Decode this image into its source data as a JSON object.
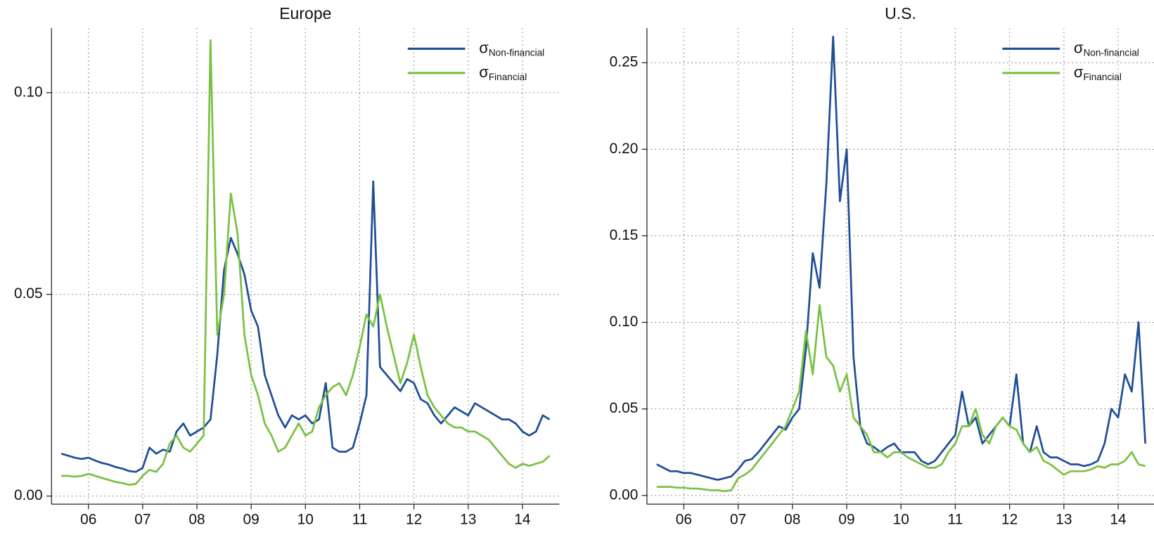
{
  "chart_data": [
    {
      "type": "line",
      "title": "Europe",
      "grid": true,
      "legend": "upper right",
      "xlim": [
        2005.32,
        2014.68
      ],
      "xticks": [
        {
          "value": 2006,
          "label": "06"
        },
        {
          "value": 2007,
          "label": "07"
        },
        {
          "value": 2008,
          "label": "08"
        },
        {
          "value": 2009,
          "label": "09"
        },
        {
          "value": 2010,
          "label": "10"
        },
        {
          "value": 2011,
          "label": "11"
        },
        {
          "value": 2012,
          "label": "12"
        },
        {
          "value": 2013,
          "label": "13"
        },
        {
          "value": 2014,
          "label": "14"
        }
      ],
      "ylim": [
        -0.002,
        0.116
      ],
      "yticks": [
        {
          "value": 0,
          "label": "0.00"
        },
        {
          "value": 0.05,
          "label": "0.05"
        },
        {
          "value": 0.1,
          "label": "0.10"
        }
      ],
      "x": [
        2005.5,
        2005.625,
        2005.75,
        2005.875,
        2006,
        2006.125,
        2006.25,
        2006.375,
        2006.5,
        2006.625,
        2006.75,
        2006.875,
        2007,
        2007.125,
        2007.25,
        2007.375,
        2007.5,
        2007.625,
        2007.75,
        2007.875,
        2008,
        2008.125,
        2008.25,
        2008.375,
        2008.5,
        2008.625,
        2008.75,
        2008.875,
        2009,
        2009.125,
        2009.25,
        2009.375,
        2009.5,
        2009.625,
        2009.75,
        2009.875,
        2010,
        2010.125,
        2010.25,
        2010.375,
        2010.5,
        2010.625,
        2010.75,
        2010.875,
        2011,
        2011.125,
        2011.25,
        2011.375,
        2011.5,
        2011.625,
        2011.75,
        2011.875,
        2012,
        2012.125,
        2012.25,
        2012.375,
        2012.5,
        2012.625,
        2012.75,
        2012.875,
        2013,
        2013.125,
        2013.25,
        2013.375,
        2013.5,
        2013.625,
        2013.75,
        2013.875,
        2014,
        2014.125,
        2014.25,
        2014.375,
        2014.5
      ],
      "series": [
        {
          "name": "σ",
          "subscript": "Non-financial",
          "color": "#1f4e96",
          "values": [
            0.0105,
            0.01,
            0.0095,
            0.0092,
            0.0095,
            0.0088,
            0.0082,
            0.0078,
            0.0072,
            0.0068,
            0.0062,
            0.006,
            0.007,
            0.012,
            0.0105,
            0.0115,
            0.011,
            0.016,
            0.018,
            0.015,
            0.016,
            0.017,
            0.019,
            0.035,
            0.056,
            0.064,
            0.06,
            0.055,
            0.046,
            0.042,
            0.03,
            0.025,
            0.02,
            0.017,
            0.02,
            0.019,
            0.02,
            0.018,
            0.019,
            0.028,
            0.012,
            0.011,
            0.011,
            0.012,
            0.018,
            0.025,
            0.078,
            0.032,
            0.03,
            0.028,
            0.026,
            0.029,
            0.028,
            0.024,
            0.023,
            0.02,
            0.018,
            0.02,
            0.022,
            0.021,
            0.02,
            0.023,
            0.022,
            0.021,
            0.02,
            0.019,
            0.019,
            0.018,
            0.016,
            0.015,
            0.016,
            0.02,
            0.019
          ]
        },
        {
          "name": "σ",
          "subscript": "Financial",
          "color": "#7ac143",
          "values": [
            0.005,
            0.005,
            0.0048,
            0.005,
            0.0055,
            0.005,
            0.0045,
            0.004,
            0.0035,
            0.0032,
            0.0028,
            0.003,
            0.005,
            0.0065,
            0.006,
            0.008,
            0.013,
            0.015,
            0.012,
            0.011,
            0.013,
            0.015,
            0.113,
            0.04,
            0.05,
            0.075,
            0.065,
            0.04,
            0.03,
            0.025,
            0.018,
            0.015,
            0.011,
            0.012,
            0.015,
            0.018,
            0.015,
            0.016,
            0.022,
            0.025,
            0.027,
            0.028,
            0.025,
            0.03,
            0.037,
            0.045,
            0.042,
            0.05,
            0.042,
            0.035,
            0.028,
            0.033,
            0.04,
            0.032,
            0.025,
            0.022,
            0.02,
            0.018,
            0.017,
            0.017,
            0.016,
            0.016,
            0.015,
            0.014,
            0.012,
            0.01,
            0.008,
            0.007,
            0.008,
            0.0075,
            0.008,
            0.0085,
            0.01
          ]
        }
      ]
    },
    {
      "type": "line",
      "title": "U.S.",
      "grid": true,
      "legend": "upper right",
      "xlim": [
        2005.32,
        2014.66
      ],
      "xticks": [
        {
          "value": 2006,
          "label": "06"
        },
        {
          "value": 2007,
          "label": "07"
        },
        {
          "value": 2008,
          "label": "08"
        },
        {
          "value": 2009,
          "label": "09"
        },
        {
          "value": 2010,
          "label": "10"
        },
        {
          "value": 2011,
          "label": "11"
        },
        {
          "value": 2012,
          "label": "12"
        },
        {
          "value": 2013,
          "label": "13"
        },
        {
          "value": 2014,
          "label": "14"
        }
      ],
      "ylim": [
        -0.005,
        0.27
      ],
      "yticks": [
        {
          "value": 0,
          "label": "0.00"
        },
        {
          "value": 0.05,
          "label": "0.05"
        },
        {
          "value": 0.1,
          "label": "0.10"
        },
        {
          "value": 0.15,
          "label": "0.15"
        },
        {
          "value": 0.2,
          "label": "0.20"
        },
        {
          "value": 0.25,
          "label": "0.25"
        }
      ],
      "x": [
        2005.5,
        2005.625,
        2005.75,
        2005.875,
        2006,
        2006.125,
        2006.25,
        2006.375,
        2006.5,
        2006.625,
        2006.75,
        2006.875,
        2007,
        2007.125,
        2007.25,
        2007.375,
        2007.5,
        2007.625,
        2007.75,
        2007.875,
        2008,
        2008.125,
        2008.25,
        2008.375,
        2008.5,
        2008.625,
        2008.75,
        2008.875,
        2009,
        2009.125,
        2009.25,
        2009.375,
        2009.5,
        2009.625,
        2009.75,
        2009.875,
        2010,
        2010.125,
        2010.25,
        2010.375,
        2010.5,
        2010.625,
        2010.75,
        2010.875,
        2011,
        2011.125,
        2011.25,
        2011.375,
        2011.5,
        2011.625,
        2011.75,
        2011.875,
        2012,
        2012.125,
        2012.25,
        2012.375,
        2012.5,
        2012.625,
        2012.75,
        2012.875,
        2013,
        2013.125,
        2013.25,
        2013.375,
        2013.5,
        2013.625,
        2013.75,
        2013.875,
        2014,
        2014.125,
        2014.25,
        2014.375,
        2014.5
      ],
      "series": [
        {
          "name": "σ",
          "subscript": "Non-financial",
          "color": "#1f4e96",
          "values": [
            0.018,
            0.016,
            0.014,
            0.014,
            0.013,
            0.013,
            0.012,
            0.011,
            0.01,
            0.009,
            0.01,
            0.011,
            0.015,
            0.02,
            0.021,
            0.025,
            0.03,
            0.035,
            0.04,
            0.038,
            0.045,
            0.05,
            0.085,
            0.14,
            0.12,
            0.18,
            0.265,
            0.17,
            0.2,
            0.08,
            0.04,
            0.03,
            0.028,
            0.025,
            0.028,
            0.03,
            0.025,
            0.025,
            0.025,
            0.02,
            0.018,
            0.02,
            0.025,
            0.03,
            0.035,
            0.06,
            0.04,
            0.045,
            0.03,
            0.035,
            0.04,
            0.045,
            0.04,
            0.07,
            0.03,
            0.025,
            0.04,
            0.025,
            0.022,
            0.022,
            0.02,
            0.018,
            0.018,
            0.017,
            0.018,
            0.02,
            0.03,
            0.05,
            0.045,
            0.07,
            0.06,
            0.1,
            0.03
          ]
        },
        {
          "name": "σ",
          "subscript": "Financial",
          "color": "#7ac143",
          "values": [
            0.005,
            0.005,
            0.005,
            0.0045,
            0.0045,
            0.004,
            0.004,
            0.0035,
            0.003,
            0.003,
            0.0025,
            0.003,
            0.01,
            0.012,
            0.015,
            0.02,
            0.025,
            0.03,
            0.035,
            0.04,
            0.05,
            0.06,
            0.095,
            0.07,
            0.11,
            0.08,
            0.075,
            0.06,
            0.07,
            0.045,
            0.04,
            0.035,
            0.025,
            0.025,
            0.022,
            0.025,
            0.025,
            0.022,
            0.02,
            0.018,
            0.016,
            0.016,
            0.018,
            0.025,
            0.03,
            0.04,
            0.04,
            0.05,
            0.035,
            0.03,
            0.04,
            0.045,
            0.04,
            0.038,
            0.03,
            0.025,
            0.028,
            0.02,
            0.018,
            0.015,
            0.012,
            0.014,
            0.014,
            0.014,
            0.015,
            0.017,
            0.016,
            0.018,
            0.018,
            0.02,
            0.025,
            0.018,
            0.017
          ]
        }
      ]
    }
  ]
}
